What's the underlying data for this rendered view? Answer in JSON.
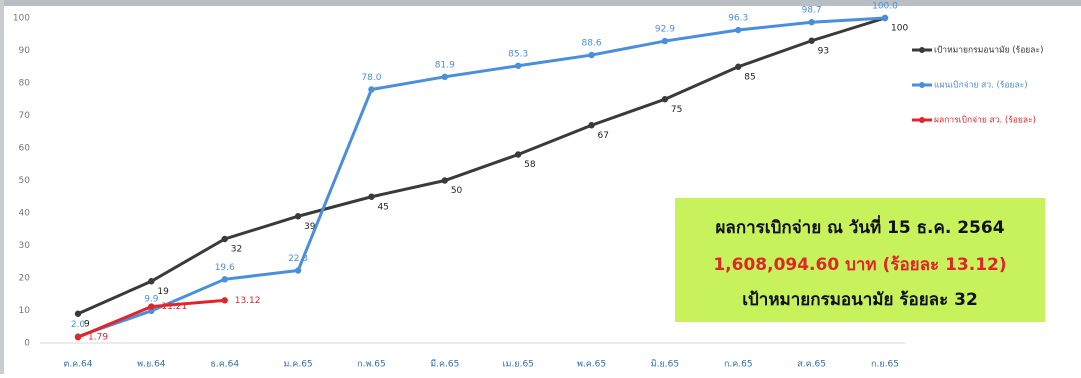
{
  "chart_data": {
    "type": "line",
    "categories": [
      "ต.ค.64",
      "พ.ย.64",
      "ธ.ค.64",
      "ม.ค.65",
      "ก.พ.65",
      "มี.ค.65",
      "เม.ย.65",
      "พ.ค.65",
      "มิ.ย.65",
      "ก.ค.65",
      "ส.ค.65",
      "ก.ย.65"
    ],
    "series": [
      {
        "name": "เป้าหมายกรมอนามัย (ร้อยละ)",
        "color": "#3a3a3a",
        "values": [
          9,
          19,
          32,
          39,
          45,
          50,
          58,
          67,
          75,
          85,
          93,
          100
        ]
      },
      {
        "name": "แผนเบิกจ่าย สว. (ร้อยละ)",
        "color": "#4a8fdc",
        "values": [
          2,
          9.9,
          19.6,
          22.3,
          78,
          81.9,
          85.3,
          88.6,
          92.9,
          96.3,
          98.7,
          100
        ],
        "value_labels": [
          "2.0",
          "9.9",
          "19.6",
          "22.3",
          "78.0",
          "81.9",
          "85.3",
          "88.6",
          "92.9",
          "96.3",
          "98.7",
          "100.0"
        ]
      },
      {
        "name": "ผลการเบิกจ่าย สว. (ร้อยละ)",
        "color": "#e0262b",
        "values": [
          1.79,
          11.21,
          13.12,
          null,
          null,
          null,
          null,
          null,
          null,
          null,
          null,
          null
        ]
      }
    ],
    "ylim": [
      0,
      100
    ],
    "yticks": [
      0,
      10,
      20,
      30,
      40,
      50,
      60,
      70,
      80,
      90,
      100
    ],
    "grid": false,
    "legend": "right",
    "annotation": [
      "ผลการเบิกจ่าย ณ วันที่ 15 ธ.ค. 2564",
      "1,608,094.60 บาท (ร้อยละ 13.12)",
      "เป้าหมายกรมอนามัย ร้อยละ 32"
    ]
  }
}
